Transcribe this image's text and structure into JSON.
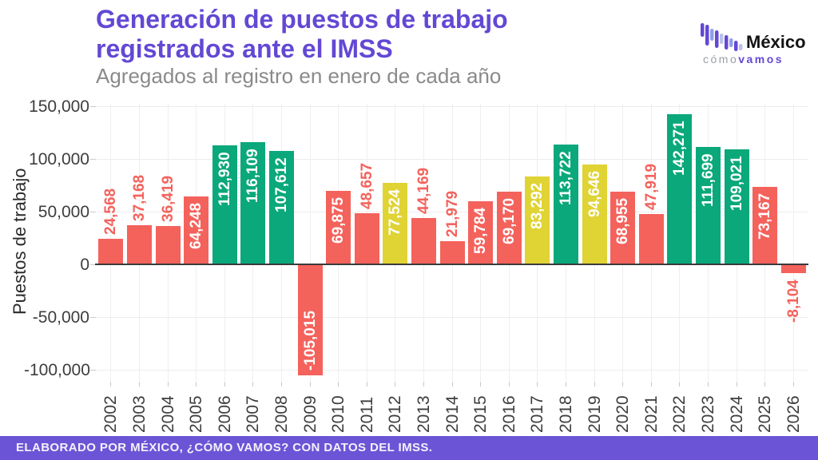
{
  "header": {
    "title_line1": "Generación de puestos de trabajo",
    "title_line2": "registrados ante el IMSS",
    "subtitle": "Agregados al registro en enero de cada año"
  },
  "logo": {
    "brand": "México",
    "tagline_word1": "cómo",
    "tagline_word2": "vamos"
  },
  "chart_data": {
    "type": "bar",
    "title": "Generación de puestos de trabajo registrados ante el IMSS",
    "subtitle": "Agregados al registro en enero de cada año",
    "ylabel": "Puestos de trabajo",
    "xlabel": "",
    "categories": [
      "2002",
      "2003",
      "2004",
      "2005",
      "2006",
      "2007",
      "2008",
      "2009",
      "2010",
      "2011",
      "2012",
      "2013",
      "2014",
      "2015",
      "2016",
      "2017",
      "2018",
      "2019",
      "2020",
      "2021",
      "2022",
      "2023",
      "2024",
      "2025",
      "2026"
    ],
    "values": [
      24568,
      37168,
      36419,
      64248,
      112930,
      116109,
      107612,
      -105015,
      69875,
      48657,
      77524,
      44169,
      21979,
      59784,
      69170,
      83292,
      113722,
      94646,
      68955,
      47919,
      142271,
      111699,
      109021,
      73167,
      -8104
    ],
    "bar_colors": [
      "red",
      "red",
      "red",
      "red",
      "green",
      "green",
      "green",
      "red",
      "red",
      "red",
      "yellow",
      "red",
      "red",
      "red",
      "red",
      "yellow",
      "green",
      "yellow",
      "red",
      "red",
      "green",
      "green",
      "green",
      "red",
      "red"
    ],
    "palette": {
      "red": "#F4625C",
      "green": "#0AA87A",
      "yellow": "#E0D334"
    },
    "yticks": [
      150000,
      100000,
      50000,
      0,
      -50000,
      -100000
    ],
    "ylim": [
      -115000,
      155000
    ],
    "grid": true,
    "legend": false,
    "value_labels": true,
    "label_inside_threshold": 55000
  },
  "footer": {
    "text": "ELABORADO POR MÉXICO, ¿CÓMO VAMOS? CON DATOS DEL IMSS."
  },
  "colors": {
    "title": "#6348D4",
    "footer_bg": "#6B55D6",
    "axis_text": "#3D3D3D",
    "subtitle_text": "#8A8A8A",
    "grid": "#ECECEC",
    "zero_line": "#3A3A3A"
  }
}
